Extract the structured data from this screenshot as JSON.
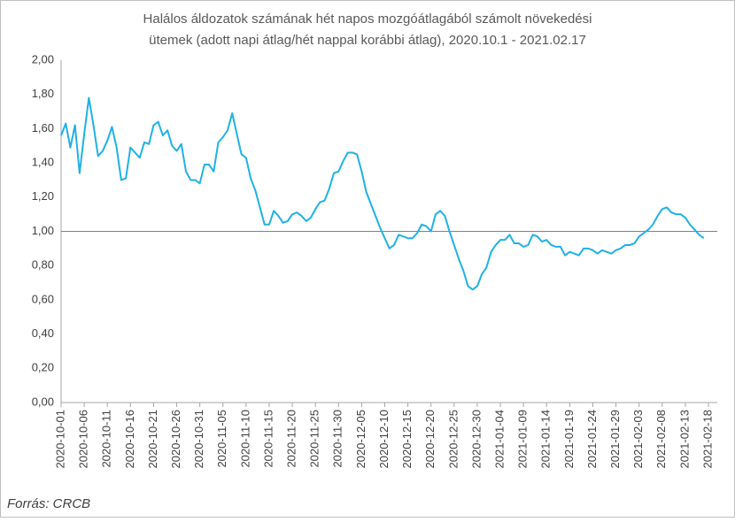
{
  "chart_data": {
    "type": "line",
    "title": [
      "Halálos áldozatok számának hét napos mozgóátlagából számolt növekedési",
      "ütemek (adott napi átlag/hét nappal korábbi átlag), 2020.10.1 - 2021.02.17"
    ],
    "source": "Forrás: CRCB",
    "x": [
      "2020-10-01",
      "2020-10-02",
      "2020-10-03",
      "2020-10-04",
      "2020-10-05",
      "2020-10-06",
      "2020-10-07",
      "2020-10-08",
      "2020-10-09",
      "2020-10-10",
      "2020-10-11",
      "2020-10-12",
      "2020-10-13",
      "2020-10-14",
      "2020-10-15",
      "2020-10-16",
      "2020-10-17",
      "2020-10-18",
      "2020-10-19",
      "2020-10-20",
      "2020-10-21",
      "2020-10-22",
      "2020-10-23",
      "2020-10-24",
      "2020-10-25",
      "2020-10-26",
      "2020-10-27",
      "2020-10-28",
      "2020-10-29",
      "2020-10-30",
      "2020-10-31",
      "2020-11-01",
      "2020-11-02",
      "2020-11-03",
      "2020-11-04",
      "2020-11-05",
      "2020-11-06",
      "2020-11-07",
      "2020-11-08",
      "2020-11-09",
      "2020-11-10",
      "2020-11-11",
      "2020-11-12",
      "2020-11-13",
      "2020-11-14",
      "2020-11-15",
      "2020-11-16",
      "2020-11-17",
      "2020-11-18",
      "2020-11-19",
      "2020-11-20",
      "2020-11-21",
      "2020-11-22",
      "2020-11-23",
      "2020-11-24",
      "2020-11-25",
      "2020-11-26",
      "2020-11-27",
      "2020-11-28",
      "2020-11-29",
      "2020-11-30",
      "2020-12-01",
      "2020-12-02",
      "2020-12-03",
      "2020-12-04",
      "2020-12-05",
      "2020-12-06",
      "2020-12-07",
      "2020-12-08",
      "2020-12-09",
      "2020-12-10",
      "2020-12-11",
      "2020-12-12",
      "2020-12-13",
      "2020-12-14",
      "2020-12-15",
      "2020-12-16",
      "2020-12-17",
      "2020-12-18",
      "2020-12-19",
      "2020-12-20",
      "2020-12-21",
      "2020-12-22",
      "2020-12-23",
      "2020-12-24",
      "2020-12-25",
      "2020-12-26",
      "2020-12-27",
      "2020-12-28",
      "2020-12-29",
      "2020-12-30",
      "2020-12-31",
      "2021-01-01",
      "2021-01-02",
      "2021-01-03",
      "2021-01-04",
      "2021-01-05",
      "2021-01-06",
      "2021-01-07",
      "2021-01-08",
      "2021-01-09",
      "2021-01-10",
      "2021-01-11",
      "2021-01-12",
      "2021-01-13",
      "2021-01-14",
      "2021-01-15",
      "2021-01-16",
      "2021-01-17",
      "2021-01-18",
      "2021-01-19",
      "2021-01-20",
      "2021-01-21",
      "2021-01-22",
      "2021-01-23",
      "2021-01-24",
      "2021-01-25",
      "2021-01-26",
      "2021-01-27",
      "2021-01-28",
      "2021-01-29",
      "2021-01-30",
      "2021-01-31",
      "2021-02-01",
      "2021-02-02",
      "2021-02-03",
      "2021-02-04",
      "2021-02-05",
      "2021-02-06",
      "2021-02-07",
      "2021-02-08",
      "2021-02-09",
      "2021-02-10",
      "2021-02-11",
      "2021-02-12",
      "2021-02-13",
      "2021-02-14",
      "2021-02-15",
      "2021-02-16",
      "2021-02-17"
    ],
    "values": [
      1.56,
      1.63,
      1.49,
      1.62,
      1.34,
      1.57,
      1.78,
      1.62,
      1.44,
      1.47,
      1.53,
      1.61,
      1.49,
      1.3,
      1.31,
      1.49,
      1.46,
      1.43,
      1.52,
      1.51,
      1.62,
      1.64,
      1.56,
      1.59,
      1.5,
      1.47,
      1.51,
      1.35,
      1.3,
      1.3,
      1.28,
      1.39,
      1.39,
      1.35,
      1.52,
      1.55,
      1.59,
      1.69,
      1.57,
      1.45,
      1.43,
      1.31,
      1.24,
      1.14,
      1.04,
      1.04,
      1.12,
      1.09,
      1.05,
      1.06,
      1.1,
      1.11,
      1.09,
      1.06,
      1.08,
      1.13,
      1.17,
      1.18,
      1.25,
      1.34,
      1.35,
      1.41,
      1.46,
      1.46,
      1.45,
      1.35,
      1.23,
      1.16,
      1.09,
      1.02,
      0.96,
      0.9,
      0.92,
      0.98,
      0.97,
      0.96,
      0.96,
      0.99,
      1.04,
      1.03,
      1.0,
      1.1,
      1.12,
      1.09,
      1.0,
      0.92,
      0.84,
      0.77,
      0.68,
      0.66,
      0.68,
      0.75,
      0.79,
      0.88,
      0.92,
      0.95,
      0.95,
      0.98,
      0.93,
      0.93,
      0.91,
      0.92,
      0.98,
      0.97,
      0.94,
      0.95,
      0.92,
      0.91,
      0.91,
      0.86,
      0.88,
      0.87,
      0.86,
      0.9,
      0.9,
      0.89,
      0.87,
      0.89,
      0.88,
      0.87,
      0.89,
      0.9,
      0.92,
      0.92,
      0.93,
      0.97,
      0.99,
      1.01,
      1.04,
      1.09,
      1.13,
      1.14,
      1.11,
      1.1,
      1.1,
      1.08,
      1.04,
      1.01,
      0.98,
      0.96
    ],
    "color": "#1fb1e6",
    "hline": 1,
    "xlim": [
      "2020-10-01",
      "2021-02-18"
    ],
    "xticks": [
      "2020-10-01",
      "2020-10-06",
      "2020-10-11",
      "2020-10-16",
      "2020-10-21",
      "2020-10-26",
      "2020-10-31",
      "2020-11-05",
      "2020-11-10",
      "2020-11-15",
      "2020-11-20",
      "2020-11-25",
      "2020-11-30",
      "2020-12-05",
      "2020-12-10",
      "2020-12-15",
      "2020-12-20",
      "2020-12-25",
      "2020-12-30",
      "2021-01-04",
      "2021-01-09",
      "2021-01-14",
      "2021-01-19",
      "2021-01-24",
      "2021-01-29",
      "2021-02-03",
      "2021-02-08",
      "2021-02-13",
      "2021-02-18"
    ],
    "ylim": [
      0,
      2
    ],
    "yticks": [
      {
        "value": 0,
        "label": "0,00"
      },
      {
        "value": 0.2,
        "label": "0,20"
      },
      {
        "value": 0.4,
        "label": "0,40"
      },
      {
        "value": 0.6,
        "label": "0,60"
      },
      {
        "value": 0.8,
        "label": "0,80"
      },
      {
        "value": 1,
        "label": "1,00"
      },
      {
        "value": 1.2,
        "label": "1,20"
      },
      {
        "value": 1.4,
        "label": "1,40"
      },
      {
        "value": 1.6,
        "label": "1,60"
      },
      {
        "value": 1.8,
        "label": "1,80"
      },
      {
        "value": 2,
        "label": "2,00"
      }
    ]
  }
}
